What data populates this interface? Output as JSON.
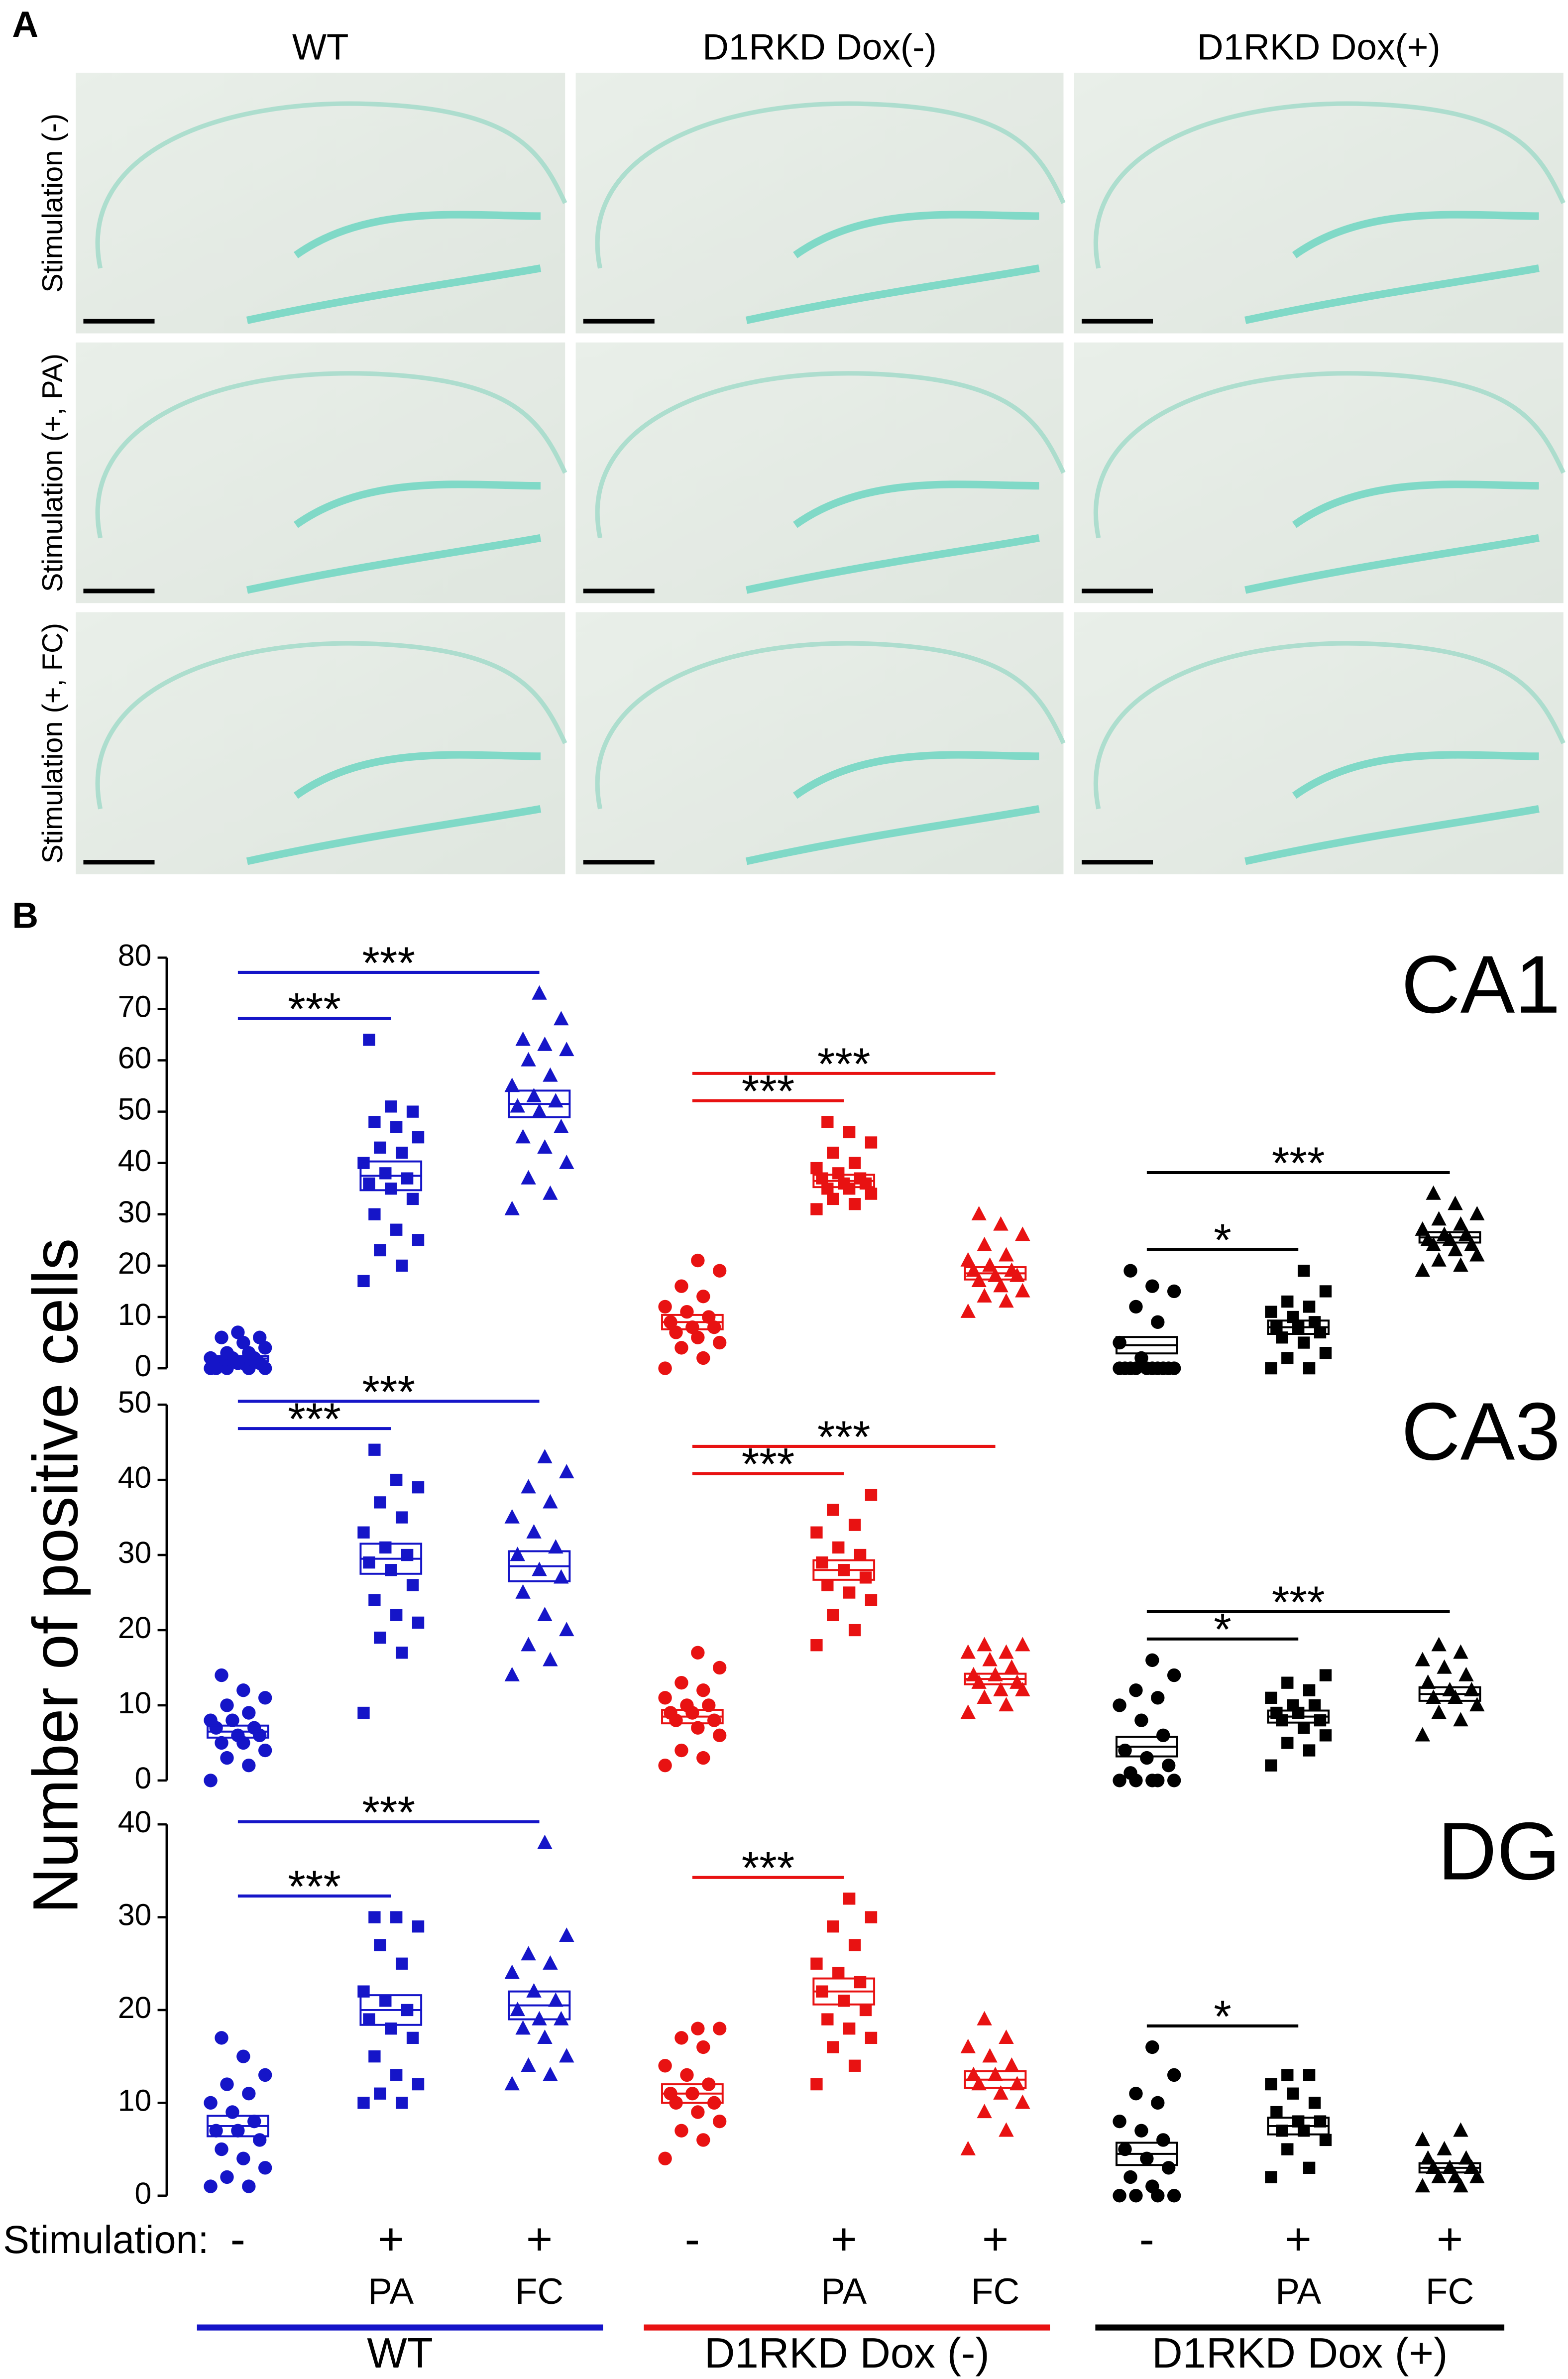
{
  "panel_a": {
    "label": "A",
    "columns": [
      "WT",
      "D1RKD Dox(-)",
      "D1RKD Dox(+)"
    ],
    "rows": [
      "Stimulation (-)",
      "Stimulation (+, PA)",
      "Stimulation (+, FC)"
    ]
  },
  "panel_b_label": "B",
  "y_label": "Number of positive cells",
  "x_row_label": "Stimulation:",
  "stimulation": [
    "-",
    "+",
    "+",
    "-",
    "+",
    "+",
    "-",
    "+",
    "+"
  ],
  "sublabels": [
    null,
    "PA",
    "FC",
    null,
    "PA",
    "FC",
    null,
    "PA",
    "FC"
  ],
  "groups": [
    {
      "name": "WT",
      "color": "#1515c8"
    },
    {
      "name": "D1RKD Dox (-)",
      "color": "#e81212"
    },
    {
      "name": "D1RKD Dox (+)",
      "color": "#000000"
    }
  ],
  "chart_data": [
    {
      "type": "scatter",
      "title": "CA1",
      "ylim": [
        0,
        80
      ],
      "yticks": [
        0,
        10,
        20,
        30,
        40,
        50,
        60,
        70,
        80
      ],
      "series": [
        {
          "color": "#1515c8",
          "marker": "circle",
          "values": [
            0,
            0,
            0,
            0,
            1,
            1,
            1,
            1,
            1,
            2,
            2,
            2,
            3,
            3,
            4,
            5,
            6,
            6,
            7,
            0
          ],
          "mean": 1.9,
          "sem": 0.5
        },
        {
          "color": "#1515c8",
          "marker": "square",
          "values": [
            17,
            20,
            23,
            25,
            27,
            30,
            33,
            35,
            36,
            37,
            38,
            40,
            42,
            43,
            45,
            47,
            48,
            50,
            51,
            64
          ],
          "mean": 37.5,
          "sem": 2.8
        },
        {
          "color": "#1515c8",
          "marker": "triangle",
          "values": [
            31,
            34,
            37,
            40,
            43,
            45,
            47,
            50,
            51,
            52,
            53,
            55,
            57,
            60,
            62,
            63,
            64,
            68,
            73
          ],
          "mean": 51.5,
          "sem": 2.6
        },
        {
          "color": "#e81212",
          "marker": "circle",
          "values": [
            0,
            2,
            4,
            5,
            6,
            7,
            8,
            8,
            9,
            10,
            11,
            12,
            14,
            16,
            19,
            21
          ],
          "mean": 9,
          "sem": 1.4
        },
        {
          "color": "#e81212",
          "marker": "square",
          "values": [
            31,
            32,
            33,
            34,
            35,
            35,
            36,
            36,
            37,
            37,
            38,
            39,
            40,
            42,
            44,
            46,
            48
          ],
          "mean": 36.5,
          "sem": 1.2
        },
        {
          "color": "#e81212",
          "marker": "triangle",
          "values": [
            11,
            13,
            14,
            15,
            16,
            17,
            18,
            18,
            19,
            19,
            20,
            21,
            22,
            24,
            26,
            28,
            30
          ],
          "mean": 18.5,
          "sem": 1.2
        },
        {
          "color": "#000000",
          "marker": "circle",
          "values": [
            0,
            0,
            0,
            0,
            0,
            0,
            0,
            0,
            0,
            0,
            2,
            5,
            9,
            12,
            15,
            16,
            19
          ],
          "mean": 4.5,
          "sem": 1.6
        },
        {
          "color": "#000000",
          "marker": "square",
          "values": [
            0,
            0,
            2,
            3,
            5,
            6,
            7,
            8,
            8,
            9,
            10,
            11,
            12,
            13,
            15,
            19
          ],
          "mean": 8,
          "sem": 1.3
        },
        {
          "color": "#000000",
          "marker": "triangle",
          "values": [
            19,
            20,
            21,
            22,
            23,
            24,
            24,
            25,
            25,
            26,
            26,
            27,
            28,
            29,
            30,
            32,
            34
          ],
          "mean": 25.5,
          "sem": 1.0
        }
      ],
      "comparisons": [
        {
          "between": [
            0,
            1
          ],
          "label": "***"
        },
        {
          "between": [
            0,
            2
          ],
          "label": "***"
        },
        {
          "between": [
            3,
            4
          ],
          "label": "***"
        },
        {
          "between": [
            3,
            5
          ],
          "label": "***"
        },
        {
          "between": [
            6,
            7
          ],
          "label": "*"
        },
        {
          "between": [
            6,
            8
          ],
          "label": "***"
        }
      ]
    },
    {
      "type": "scatter",
      "title": "CA3",
      "ylim": [
        0,
        50
      ],
      "yticks": [
        0,
        10,
        20,
        30,
        40,
        50
      ],
      "series": [
        {
          "color": "#1515c8",
          "marker": "circle",
          "values": [
            0,
            2,
            3,
            4,
            5,
            5,
            6,
            6,
            7,
            7,
            8,
            8,
            9,
            10,
            11,
            12,
            14
          ],
          "mean": 6.5,
          "sem": 0.8
        },
        {
          "color": "#1515c8",
          "marker": "square",
          "values": [
            9,
            17,
            19,
            21,
            22,
            24,
            26,
            28,
            29,
            30,
            31,
            33,
            35,
            37,
            39,
            40,
            44
          ],
          "mean": 29.5,
          "sem": 2
        },
        {
          "color": "#1515c8",
          "marker": "triangle",
          "values": [
            14,
            16,
            18,
            20,
            22,
            25,
            27,
            28,
            30,
            31,
            33,
            35,
            37,
            39,
            41,
            43
          ],
          "mean": 28.5,
          "sem": 2
        },
        {
          "color": "#e81212",
          "marker": "circle",
          "values": [
            2,
            3,
            4,
            6,
            7,
            8,
            8,
            9,
            9,
            10,
            10,
            11,
            12,
            13,
            15,
            17
          ],
          "mean": 8.5,
          "sem": 0.9
        },
        {
          "color": "#e81212",
          "marker": "square",
          "values": [
            18,
            20,
            22,
            24,
            25,
            26,
            27,
            28,
            29,
            30,
            31,
            33,
            34,
            36,
            38
          ],
          "mean": 28,
          "sem": 1.3
        },
        {
          "color": "#e81212",
          "marker": "triangle",
          "values": [
            9,
            10,
            11,
            12,
            12,
            13,
            13,
            14,
            14,
            15,
            16,
            17,
            17,
            18,
            18
          ],
          "mean": 13.5,
          "sem": 0.7
        },
        {
          "color": "#000000",
          "marker": "circle",
          "values": [
            0,
            0,
            0,
            0,
            0,
            1,
            2,
            3,
            4,
            6,
            8,
            10,
            11,
            12,
            14,
            16
          ],
          "mean": 4.5,
          "sem": 1.3
        },
        {
          "color": "#000000",
          "marker": "square",
          "values": [
            2,
            4,
            5,
            6,
            7,
            8,
            8,
            9,
            9,
            10,
            10,
            11,
            12,
            13,
            14
          ],
          "mean": 8.5,
          "sem": 0.8
        },
        {
          "color": "#000000",
          "marker": "triangle",
          "values": [
            6,
            8,
            9,
            10,
            11,
            11,
            12,
            12,
            13,
            14,
            15,
            16,
            17,
            18
          ],
          "mean": 11.5,
          "sem": 0.9
        }
      ],
      "comparisons": [
        {
          "between": [
            0,
            1
          ],
          "label": "***"
        },
        {
          "between": [
            0,
            2
          ],
          "label": "***"
        },
        {
          "between": [
            3,
            4
          ],
          "label": "***"
        },
        {
          "between": [
            3,
            5
          ],
          "label": "***"
        },
        {
          "between": [
            6,
            7
          ],
          "label": "*"
        },
        {
          "between": [
            6,
            8
          ],
          "label": "***"
        }
      ]
    },
    {
      "type": "scatter",
      "title": "DG",
      "ylim": [
        0,
        40
      ],
      "yticks": [
        0,
        10,
        20,
        30,
        40
      ],
      "series": [
        {
          "color": "#1515c8",
          "marker": "circle",
          "values": [
            1,
            1,
            2,
            3,
            4,
            5,
            6,
            7,
            7,
            8,
            9,
            10,
            11,
            12,
            13,
            15,
            17
          ],
          "mean": 7.5,
          "sem": 1.1
        },
        {
          "color": "#1515c8",
          "marker": "square",
          "values": [
            10,
            10,
            11,
            12,
            13,
            15,
            17,
            18,
            19,
            20,
            21,
            22,
            25,
            27,
            29,
            30,
            30
          ],
          "mean": 20,
          "sem": 1.6
        },
        {
          "color": "#1515c8",
          "marker": "triangle",
          "values": [
            12,
            13,
            14,
            15,
            17,
            18,
            19,
            19,
            20,
            21,
            22,
            24,
            25,
            26,
            28,
            38
          ],
          "mean": 20.5,
          "sem": 1.5
        },
        {
          "color": "#e81212",
          "marker": "circle",
          "values": [
            4,
            6,
            7,
            8,
            9,
            10,
            10,
            11,
            11,
            12,
            13,
            14,
            16,
            17,
            18,
            18
          ],
          "mean": 11,
          "sem": 1
        },
        {
          "color": "#e81212",
          "marker": "square",
          "values": [
            12,
            14,
            16,
            17,
            18,
            19,
            20,
            21,
            22,
            23,
            24,
            25,
            27,
            29,
            30,
            32
          ],
          "mean": 22,
          "sem": 1.4
        },
        {
          "color": "#e81212",
          "marker": "triangle",
          "values": [
            5,
            7,
            9,
            10,
            11,
            12,
            12,
            13,
            13,
            14,
            15,
            16,
            17,
            19
          ],
          "mean": 12.5,
          "sem": 0.9
        },
        {
          "color": "#000000",
          "marker": "circle",
          "values": [
            0,
            0,
            0,
            0,
            1,
            2,
            3,
            4,
            5,
            6,
            7,
            8,
            10,
            11,
            13,
            16
          ],
          "mean": 4.5,
          "sem": 1.2
        },
        {
          "color": "#000000",
          "marker": "square",
          "values": [
            2,
            3,
            5,
            6,
            7,
            7,
            8,
            8,
            9,
            10,
            11,
            12,
            13,
            13
          ],
          "mean": 7.5,
          "sem": 0.9
        },
        {
          "color": "#000000",
          "marker": "triangle",
          "values": [
            1,
            1,
            2,
            2,
            2,
            3,
            3,
            3,
            4,
            4,
            5,
            6,
            7
          ],
          "mean": 3,
          "sem": 0.5
        }
      ],
      "comparisons": [
        {
          "between": [
            0,
            1
          ],
          "label": "***"
        },
        {
          "between": [
            0,
            2
          ],
          "label": "***"
        },
        {
          "between": [
            3,
            4
          ],
          "label": "***"
        },
        {
          "between": [
            6,
            7
          ],
          "label": "*"
        }
      ]
    }
  ]
}
